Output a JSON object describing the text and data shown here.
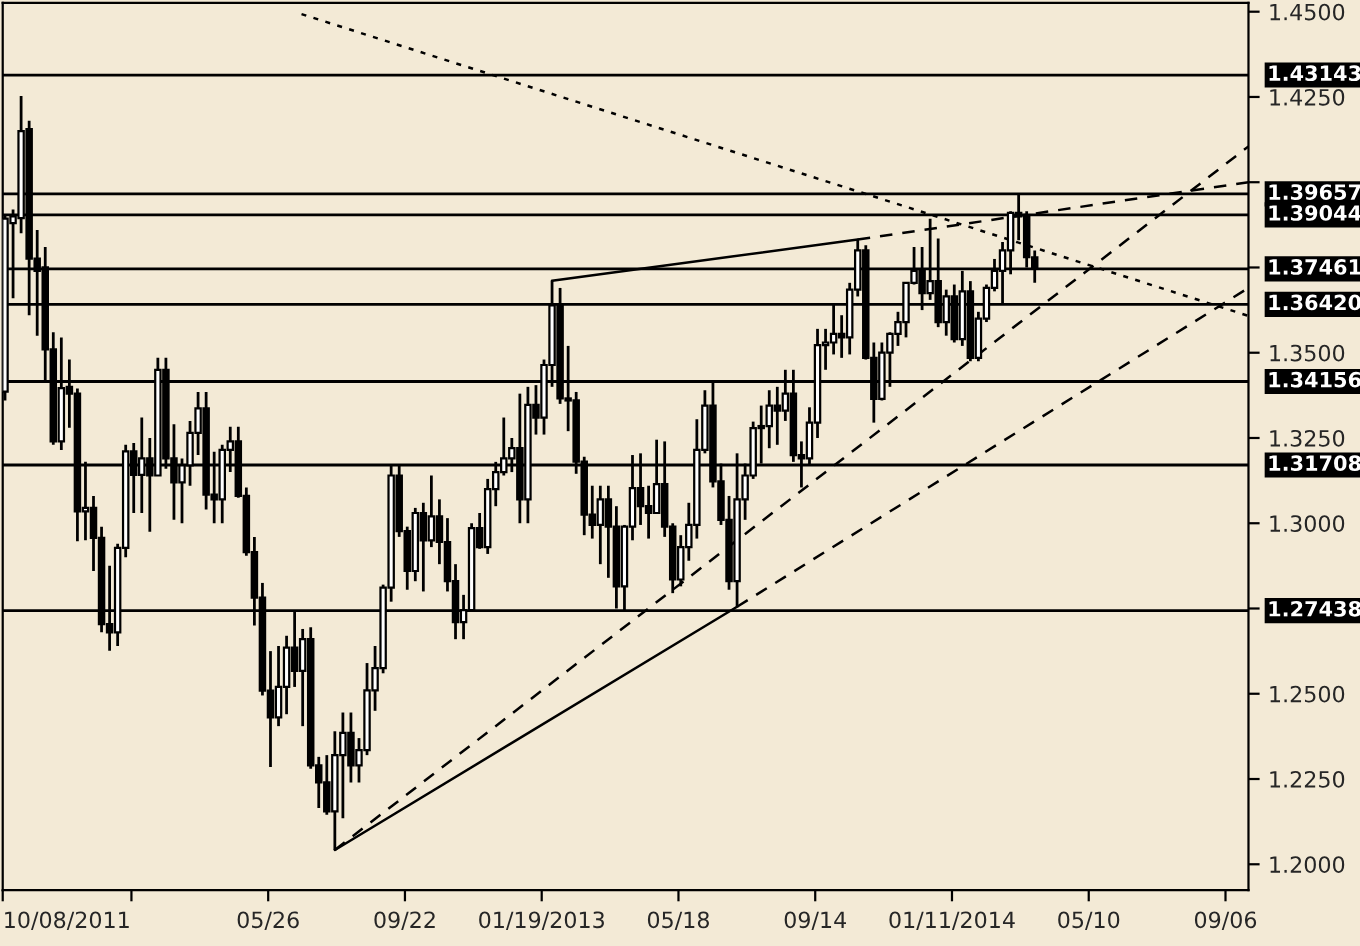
{
  "chart_data": {
    "type": "candlestick",
    "x": [
      "2011-10-10",
      "2011-10-17",
      "2011-10-24",
      "2011-10-31",
      "2011-11-07",
      "2011-11-14",
      "2011-11-21",
      "2011-11-28",
      "2011-12-05",
      "2011-12-12",
      "2011-12-19",
      "2011-12-26",
      "2012-01-02",
      "2012-01-09",
      "2012-01-16",
      "2012-01-23",
      "2012-01-30",
      "2012-02-06",
      "2012-02-13",
      "2012-02-20",
      "2012-02-27",
      "2012-03-05",
      "2012-03-12",
      "2012-03-19",
      "2012-03-26",
      "2012-04-02",
      "2012-04-09",
      "2012-04-16",
      "2012-04-23",
      "2012-04-30",
      "2012-05-07",
      "2012-05-14",
      "2012-05-21",
      "2012-05-28",
      "2012-06-04",
      "2012-06-11",
      "2012-06-18",
      "2012-06-25",
      "2012-07-02",
      "2012-07-09",
      "2012-07-16",
      "2012-07-23",
      "2012-07-30",
      "2012-08-06",
      "2012-08-13",
      "2012-08-20",
      "2012-08-27",
      "2012-09-03",
      "2012-09-10",
      "2012-09-17",
      "2012-09-24",
      "2012-10-01",
      "2012-10-08",
      "2012-10-15",
      "2012-10-22",
      "2012-10-29",
      "2012-11-05",
      "2012-11-12",
      "2012-11-19",
      "2012-11-26",
      "2012-12-03",
      "2012-12-10",
      "2012-12-17",
      "2012-12-24",
      "2012-12-31",
      "2013-01-07",
      "2013-01-14",
      "2013-01-21",
      "2013-01-28",
      "2013-02-04",
      "2013-02-11",
      "2013-02-18",
      "2013-02-25",
      "2013-03-04",
      "2013-03-11",
      "2013-03-18",
      "2013-03-25",
      "2013-04-01",
      "2013-04-08",
      "2013-04-15",
      "2013-04-22",
      "2013-04-29",
      "2013-05-06",
      "2013-05-13",
      "2013-05-20",
      "2013-05-27",
      "2013-06-03",
      "2013-06-10",
      "2013-06-17",
      "2013-06-24",
      "2013-07-01",
      "2013-07-08",
      "2013-07-15",
      "2013-07-22",
      "2013-07-29",
      "2013-08-05",
      "2013-08-12",
      "2013-08-19",
      "2013-08-26",
      "2013-09-02",
      "2013-09-09",
      "2013-09-16",
      "2013-09-23",
      "2013-09-30",
      "2013-10-07",
      "2013-10-14",
      "2013-10-21",
      "2013-10-28",
      "2013-11-04",
      "2013-11-11",
      "2013-11-18",
      "2013-11-25",
      "2013-12-02",
      "2013-12-09",
      "2013-12-16",
      "2013-12-23",
      "2013-12-30",
      "2014-01-06",
      "2014-01-13",
      "2014-01-20",
      "2014-01-27",
      "2014-02-03",
      "2014-02-10",
      "2014-02-17",
      "2014-02-24",
      "2014-03-03",
      "2014-03-10",
      "2014-03-17",
      "2014-03-24"
    ],
    "ohlc": [
      [
        1.3386,
        1.3905,
        1.336,
        1.3893
      ],
      [
        1.388,
        1.392,
        1.366,
        1.39
      ],
      [
        1.3895,
        1.4253,
        1.385,
        1.415
      ],
      [
        1.4156,
        1.418,
        1.361,
        1.3776
      ],
      [
        1.3776,
        1.386,
        1.355,
        1.374
      ],
      [
        1.375,
        1.381,
        1.342,
        1.351
      ],
      [
        1.351,
        1.356,
        1.323,
        1.324
      ],
      [
        1.324,
        1.3545,
        1.3215,
        1.3396
      ],
      [
        1.34,
        1.348,
        1.328,
        1.338
      ],
      [
        1.338,
        1.3395,
        1.2947,
        1.3035
      ],
      [
        1.3035,
        1.318,
        1.295,
        1.3045
      ],
      [
        1.3045,
        1.308,
        1.286,
        1.2957
      ],
      [
        1.2957,
        1.299,
        1.268,
        1.2704
      ],
      [
        1.2704,
        1.2875,
        1.2626,
        1.268
      ],
      [
        1.268,
        1.294,
        1.264,
        1.2928
      ],
      [
        1.2928,
        1.323,
        1.29,
        1.3211
      ],
      [
        1.3211,
        1.3235,
        1.303,
        1.3142
      ],
      [
        1.3142,
        1.331,
        1.303,
        1.319
      ],
      [
        1.319,
        1.325,
        1.2975,
        1.314
      ],
      [
        1.314,
        1.3485,
        1.314,
        1.345
      ],
      [
        1.345,
        1.3485,
        1.316,
        1.319
      ],
      [
        1.319,
        1.329,
        1.301,
        1.312
      ],
      [
        1.312,
        1.319,
        1.3,
        1.317
      ],
      [
        1.317,
        1.33,
        1.311,
        1.3265
      ],
      [
        1.3265,
        1.3385,
        1.32,
        1.3337
      ],
      [
        1.3337,
        1.3385,
        1.304,
        1.3084
      ],
      [
        1.3084,
        1.321,
        1.3,
        1.307
      ],
      [
        1.307,
        1.323,
        1.3,
        1.3215
      ],
      [
        1.3215,
        1.3283,
        1.315,
        1.324
      ],
      [
        1.324,
        1.3283,
        1.3075,
        1.308
      ],
      [
        1.308,
        1.3105,
        1.2905,
        1.2915
      ],
      [
        1.2915,
        1.296,
        1.27,
        1.2782
      ],
      [
        1.2782,
        1.2825,
        1.2495,
        1.2509
      ],
      [
        1.2509,
        1.2625,
        1.2285,
        1.2431
      ],
      [
        1.2431,
        1.264,
        1.2405,
        1.252
      ],
      [
        1.252,
        1.267,
        1.244,
        1.2635
      ],
      [
        1.2635,
        1.2745,
        1.252,
        1.2567
      ],
      [
        1.2567,
        1.269,
        1.2405,
        1.266
      ],
      [
        1.266,
        1.2695,
        1.228,
        1.229
      ],
      [
        1.229,
        1.2315,
        1.2165,
        1.224
      ],
      [
        1.224,
        1.232,
        1.2145,
        1.2155
      ],
      [
        1.2155,
        1.239,
        1.2042,
        1.232
      ],
      [
        1.232,
        1.2445,
        1.2135,
        1.2385
      ],
      [
        1.2385,
        1.2445,
        1.224,
        1.229
      ],
      [
        1.229,
        1.237,
        1.224,
        1.2335
      ],
      [
        1.2335,
        1.259,
        1.232,
        1.251
      ],
      [
        1.251,
        1.264,
        1.245,
        1.2575
      ],
      [
        1.2575,
        1.282,
        1.256,
        1.2811
      ],
      [
        1.2811,
        1.317,
        1.277,
        1.314
      ],
      [
        1.314,
        1.3172,
        1.296,
        1.2977
      ],
      [
        1.2977,
        1.299,
        1.2805,
        1.286
      ],
      [
        1.286,
        1.3045,
        1.283,
        1.303
      ],
      [
        1.303,
        1.306,
        1.28,
        1.295
      ],
      [
        1.295,
        1.314,
        1.293,
        1.302
      ],
      [
        1.302,
        1.307,
        1.288,
        1.2945
      ],
      [
        1.2945,
        1.3015,
        1.28,
        1.283
      ],
      [
        1.283,
        1.288,
        1.266,
        1.271
      ],
      [
        1.271,
        1.279,
        1.266,
        1.2745
      ],
      [
        1.2745,
        1.3,
        1.274,
        1.2986
      ],
      [
        1.2986,
        1.303,
        1.2925,
        1.293
      ],
      [
        1.293,
        1.313,
        1.291,
        1.31
      ],
      [
        1.31,
        1.318,
        1.305,
        1.315
      ],
      [
        1.315,
        1.331,
        1.314,
        1.319
      ],
      [
        1.319,
        1.325,
        1.315,
        1.322
      ],
      [
        1.322,
        1.338,
        1.3,
        1.307
      ],
      [
        1.307,
        1.34,
        1.3,
        1.3347
      ],
      [
        1.3347,
        1.3405,
        1.326,
        1.331
      ],
      [
        1.331,
        1.348,
        1.326,
        1.3464
      ],
      [
        1.3464,
        1.3711,
        1.34,
        1.3639
      ],
      [
        1.3639,
        1.369,
        1.335,
        1.3366
      ],
      [
        1.3366,
        1.352,
        1.327,
        1.336
      ],
      [
        1.336,
        1.3385,
        1.3145,
        1.3181
      ],
      [
        1.3181,
        1.3195,
        1.2965,
        1.3025
      ],
      [
        1.3025,
        1.311,
        1.2955,
        1.2995
      ],
      [
        1.2995,
        1.311,
        1.288,
        1.307
      ],
      [
        1.307,
        1.311,
        1.284,
        1.299
      ],
      [
        1.299,
        1.305,
        1.275,
        1.2815
      ],
      [
        1.2815,
        1.2995,
        1.2745,
        1.299
      ],
      [
        1.299,
        1.32,
        1.295,
        1.3103
      ],
      [
        1.3103,
        1.3205,
        1.2995,
        1.305
      ],
      [
        1.305,
        1.311,
        1.2955,
        1.303
      ],
      [
        1.303,
        1.3245,
        1.303,
        1.3115
      ],
      [
        1.3115,
        1.324,
        1.296,
        1.299
      ],
      [
        1.299,
        1.3,
        1.2795,
        1.2835
      ],
      [
        1.2835,
        1.2965,
        1.2815,
        1.293
      ],
      [
        1.293,
        1.306,
        1.289,
        1.2995
      ],
      [
        1.2995,
        1.3305,
        1.2955,
        1.3215
      ],
      [
        1.3215,
        1.339,
        1.3205,
        1.3345
      ],
      [
        1.3345,
        1.3415,
        1.3105,
        1.3123
      ],
      [
        1.3123,
        1.3175,
        1.2995,
        1.301
      ],
      [
        1.301,
        1.308,
        1.2805,
        1.283
      ],
      [
        1.283,
        1.3205,
        1.2755,
        1.307
      ],
      [
        1.307,
        1.3175,
        1.301,
        1.314
      ],
      [
        1.314,
        1.3298,
        1.313,
        1.3279
      ],
      [
        1.3279,
        1.3345,
        1.3175,
        1.3285
      ],
      [
        1.3285,
        1.339,
        1.322,
        1.3345
      ],
      [
        1.3345,
        1.34,
        1.323,
        1.333
      ],
      [
        1.333,
        1.345,
        1.33,
        1.338
      ],
      [
        1.338,
        1.345,
        1.318,
        1.32
      ],
      [
        1.32,
        1.324,
        1.3105,
        1.319
      ],
      [
        1.319,
        1.334,
        1.317,
        1.3295
      ],
      [
        1.3295,
        1.357,
        1.325,
        1.3522
      ],
      [
        1.3522,
        1.357,
        1.345,
        1.353
      ],
      [
        1.353,
        1.3645,
        1.3495,
        1.3555
      ],
      [
        1.3555,
        1.361,
        1.3485,
        1.3545
      ],
      [
        1.3545,
        1.3705,
        1.3495,
        1.3685
      ],
      [
        1.3685,
        1.3832,
        1.3665,
        1.38
      ],
      [
        1.38,
        1.3815,
        1.348,
        1.3485
      ],
      [
        1.3485,
        1.353,
        1.3295,
        1.3365
      ],
      [
        1.3365,
        1.353,
        1.336,
        1.35
      ],
      [
        1.35,
        1.356,
        1.34,
        1.3555
      ],
      [
        1.3555,
        1.362,
        1.352,
        1.359
      ],
      [
        1.359,
        1.3705,
        1.3545,
        1.3705
      ],
      [
        1.3705,
        1.381,
        1.37,
        1.374
      ],
      [
        1.374,
        1.381,
        1.3625,
        1.3675
      ],
      [
        1.3675,
        1.3893,
        1.3655,
        1.371
      ],
      [
        1.371,
        1.3835,
        1.3575,
        1.359
      ],
      [
        1.359,
        1.3685,
        1.355,
        1.3665
      ],
      [
        1.3665,
        1.37,
        1.353,
        1.354
      ],
      [
        1.354,
        1.374,
        1.352,
        1.368
      ],
      [
        1.368,
        1.371,
        1.3475,
        1.3485
      ],
      [
        1.3485,
        1.362,
        1.3475,
        1.36
      ],
      [
        1.36,
        1.37,
        1.359,
        1.369
      ],
      [
        1.369,
        1.3775,
        1.368,
        1.374
      ],
      [
        1.374,
        1.3825,
        1.364,
        1.38
      ],
      [
        1.38,
        1.3915,
        1.373,
        1.391
      ],
      [
        1.391,
        1.3967,
        1.383,
        1.39
      ],
      [
        1.39,
        1.3915,
        1.375,
        1.378
      ],
      [
        1.378,
        1.38,
        1.3705,
        1.3746
      ]
    ],
    "series": [
      {
        "type": "line",
        "line_style": "dotted",
        "x": [
          "2012-06-24",
          "2014-09-26"
        ],
        "values": [
          1.4493,
          1.3608
        ]
      },
      {
        "type": "line",
        "line_style": "dashed",
        "x": [
          "2013-10-21",
          "2014-09-26"
        ],
        "values": [
          1.3832,
          1.4
        ]
      },
      {
        "type": "line",
        "line_style": "solid",
        "x": [
          "2013-01-28",
          "2013-10-21"
        ],
        "values": [
          1.3711,
          1.3832
        ]
      },
      {
        "type": "line",
        "line_style": "dashed",
        "x": [
          "2012-07-23",
          "2014-09-26"
        ],
        "values": [
          1.2042,
          1.4105
        ]
      },
      {
        "type": "line",
        "line_style": "solid",
        "x": [
          "2012-07-23",
          "2013-07-08"
        ],
        "values": [
          1.2042,
          1.2755
        ]
      },
      {
        "type": "line",
        "line_style": "dashed",
        "x": [
          "2013-07-08",
          "2014-09-26"
        ],
        "values": [
          1.2755,
          1.369
        ]
      }
    ],
    "ref_lines": [
      {
        "axis": "y",
        "value": 1.43143,
        "label": "1.43143"
      },
      {
        "axis": "y",
        "value": 1.39657,
        "label": "1.39657"
      },
      {
        "axis": "y",
        "value": 1.39044,
        "label": "1.39044"
      },
      {
        "axis": "y",
        "value": 1.37461,
        "label": "1.37461",
        "color": "#000000"
      },
      {
        "axis": "y",
        "value": 1.3642,
        "label": "1.36420"
      },
      {
        "axis": "y",
        "value": 1.34156,
        "label": "1.34156"
      },
      {
        "axis": "y",
        "value": 1.31708,
        "label": "1.31708"
      },
      {
        "axis": "y",
        "value": 1.27438,
        "label": "1.27438"
      }
    ],
    "xlim": [
      "2011-10-08",
      "2014-09-26"
    ],
    "xticks": [
      {
        "value": "2011-10-08",
        "label": "10/08/2011"
      },
      {
        "value": "2012-01-28",
        "label": null
      },
      {
        "value": "2012-05-26",
        "label": "05/26"
      },
      {
        "value": "2012-09-22",
        "label": "09/22"
      },
      {
        "value": "2013-01-19",
        "label": "01/19/2013"
      },
      {
        "value": "2013-05-18",
        "label": "05/18"
      },
      {
        "value": "2013-09-14",
        "label": "09/14"
      },
      {
        "value": "2014-01-11",
        "label": "01/11/2014"
      },
      {
        "value": "2014-05-10",
        "label": "05/10"
      },
      {
        "value": "2014-09-06",
        "label": "09/06"
      }
    ],
    "ylim": [
      1.1924,
      1.4526
    ],
    "yticks": [
      {
        "value": 1.2,
        "label": "1.2000"
      },
      {
        "value": 1.225,
        "label": "1.2250"
      },
      {
        "value": 1.25,
        "label": "1.2500"
      },
      {
        "value": 1.275,
        "label": null
      },
      {
        "value": 1.3,
        "label": "1.3000"
      },
      {
        "value": 1.325,
        "label": "1.3250"
      },
      {
        "value": 1.35,
        "label": "1.3500"
      },
      {
        "value": 1.375,
        "label": null
      },
      {
        "value": 1.4,
        "label": null
      },
      {
        "value": 1.425,
        "label": "1.4250"
      },
      {
        "value": 1.45,
        "label": "1.4500"
      }
    ],
    "grid": false,
    "legend": false
  }
}
